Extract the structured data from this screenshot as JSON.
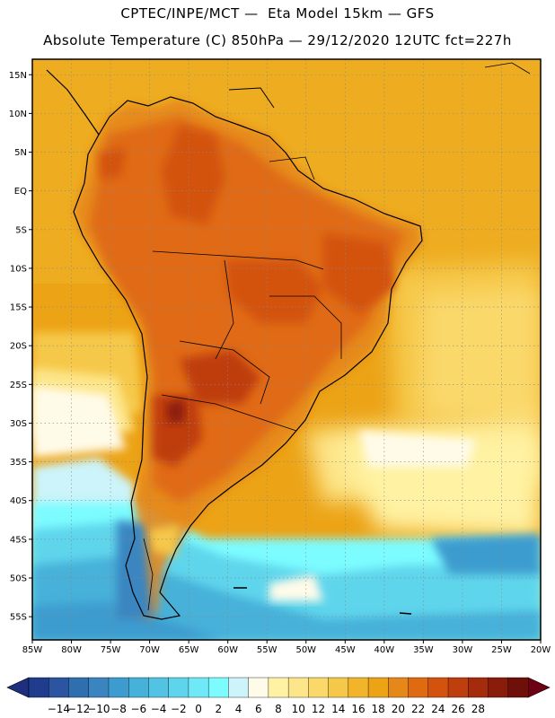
{
  "header": {
    "title_line1": "CPTEC/INPE/MCT —  Eta Model 15km — GFS",
    "title_line2": "Absolute Temperature (C) 850hPa — 29/12/2020 12UTC fct=227h"
  },
  "map": {
    "lon_min": -85,
    "lon_max": -20,
    "lat_min": -58,
    "lat_max": 17,
    "lat_ticks": [
      {
        "value": 15,
        "label": "15N"
      },
      {
        "value": 10,
        "label": "10N"
      },
      {
        "value": 5,
        "label": "5N"
      },
      {
        "value": 0,
        "label": "EQ"
      },
      {
        "value": -5,
        "label": "5S"
      },
      {
        "value": -10,
        "label": "10S"
      },
      {
        "value": -15,
        "label": "15S"
      },
      {
        "value": -20,
        "label": "20S"
      },
      {
        "value": -25,
        "label": "25S"
      },
      {
        "value": -30,
        "label": "30S"
      },
      {
        "value": -35,
        "label": "35S"
      },
      {
        "value": -40,
        "label": "40S"
      },
      {
        "value": -45,
        "label": "45S"
      },
      {
        "value": -50,
        "label": "50S"
      },
      {
        "value": -55,
        "label": "55S"
      }
    ],
    "lon_ticks": [
      {
        "value": -85,
        "label": "85W"
      },
      {
        "value": -80,
        "label": "80W"
      },
      {
        "value": -75,
        "label": "75W"
      },
      {
        "value": -70,
        "label": "70W"
      },
      {
        "value": -65,
        "label": "65W"
      },
      {
        "value": -60,
        "label": "60W"
      },
      {
        "value": -55,
        "label": "55W"
      },
      {
        "value": -50,
        "label": "50W"
      },
      {
        "value": -45,
        "label": "45W"
      },
      {
        "value": -40,
        "label": "40W"
      },
      {
        "value": -35,
        "label": "35W"
      },
      {
        "value": -30,
        "label": "30W"
      },
      {
        "value": -25,
        "label": "25W"
      },
      {
        "value": -20,
        "label": "20W"
      }
    ]
  },
  "colorbar": {
    "labels": [
      "-14",
      "-12",
      "-10",
      "-8",
      "-6",
      "-4",
      "-2",
      "0",
      "2",
      "4",
      "6",
      "8",
      "10",
      "12",
      "14",
      "16",
      "18",
      "20",
      "22",
      "24",
      "26",
      "28"
    ],
    "colors": [
      "#1f3d8c",
      "#2b55a0",
      "#2f6fb0",
      "#3a85c0",
      "#3d9ccf",
      "#46b1d9",
      "#52c3e2",
      "#5ed5ec",
      "#6fe8f7",
      "#7cfcff",
      "#ccf4fa",
      "#fffbe9",
      "#fff2a3",
      "#fde68a",
      "#fad86a",
      "#f6c84a",
      "#f1b42a",
      "#eca316",
      "#e6871a",
      "#e06a12",
      "#d3520e",
      "#bf3e0e",
      "#a52b0d",
      "#8a1c0c",
      "#6e0f0a"
    ],
    "under_color": "#1f2f80",
    "over_color": "#6e0014"
  }
}
